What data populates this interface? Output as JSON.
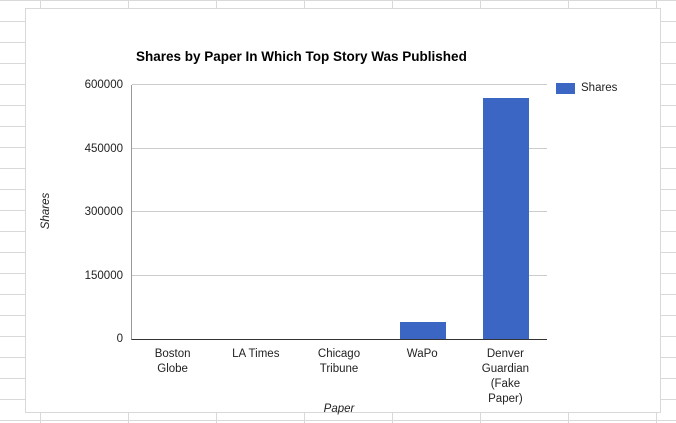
{
  "chart_data": {
    "type": "bar",
    "title": "Shares by Paper In Which Top Story Was Published",
    "categories": [
      "Boston Globe",
      "LA Times",
      "Chicago Tribune",
      "WaPo",
      "Denver Guardian (Fake Paper)"
    ],
    "values": [
      0,
      0,
      0,
      40000,
      570000
    ],
    "series": [
      {
        "name": "Shares",
        "values": [
          0,
          0,
          0,
          40000,
          570000
        ]
      }
    ],
    "xlabel": "Paper",
    "ylabel": "Shares",
    "ylim": [
      0,
      600000
    ],
    "yticks": [
      0,
      150000,
      300000,
      450000,
      600000
    ],
    "legend": {
      "label": "Shares",
      "position": "top-right"
    },
    "bar_color": "#3b66c4",
    "grid": true
  }
}
